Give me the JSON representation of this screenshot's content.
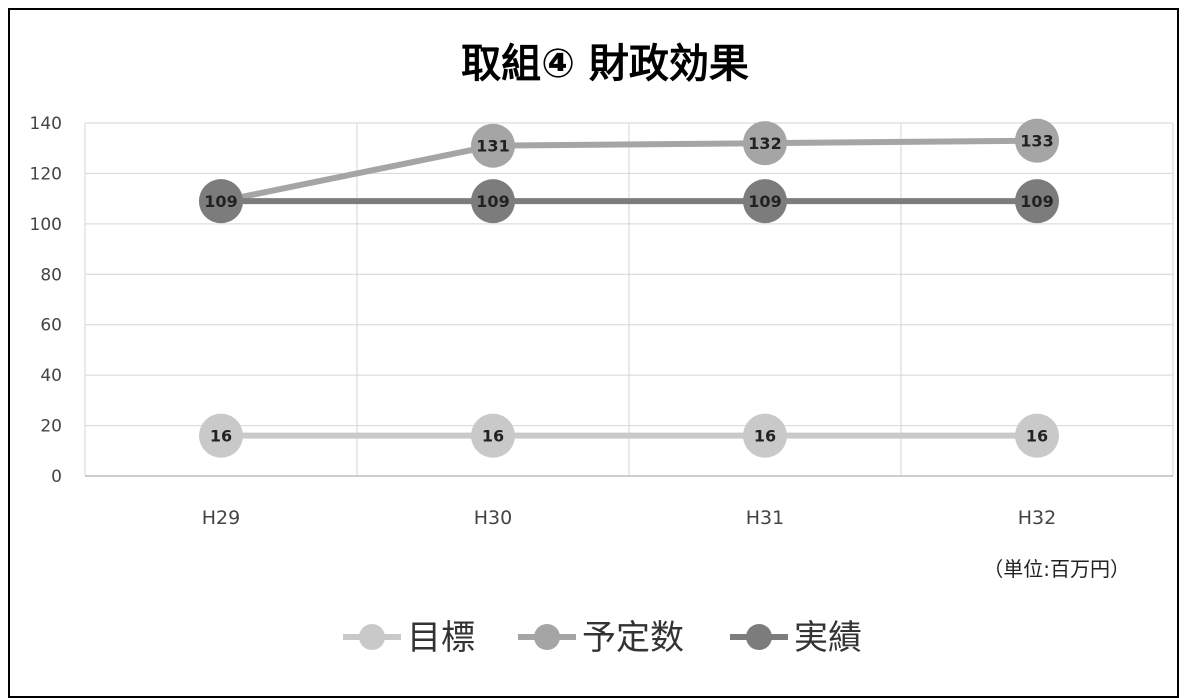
{
  "chart_data": {
    "type": "line",
    "title": "取組④ 財政効果",
    "unit_note": "（単位:百万円）",
    "categories": [
      "H29",
      "H30",
      "H31",
      "H32"
    ],
    "ylim": [
      0,
      140
    ],
    "yticks": [
      0,
      20,
      40,
      60,
      80,
      100,
      120,
      140
    ],
    "grid": true,
    "legend_position": "bottom",
    "series": [
      {
        "name": "目標",
        "values": [
          16,
          16,
          16,
          16
        ],
        "color": "#c9c9c9"
      },
      {
        "name": "予定数",
        "values": [
          109,
          131,
          132,
          133
        ],
        "color": "#a5a5a5"
      },
      {
        "name": "実績",
        "values": [
          109,
          109,
          109,
          109
        ],
        "color": "#7c7c7c"
      }
    ]
  }
}
